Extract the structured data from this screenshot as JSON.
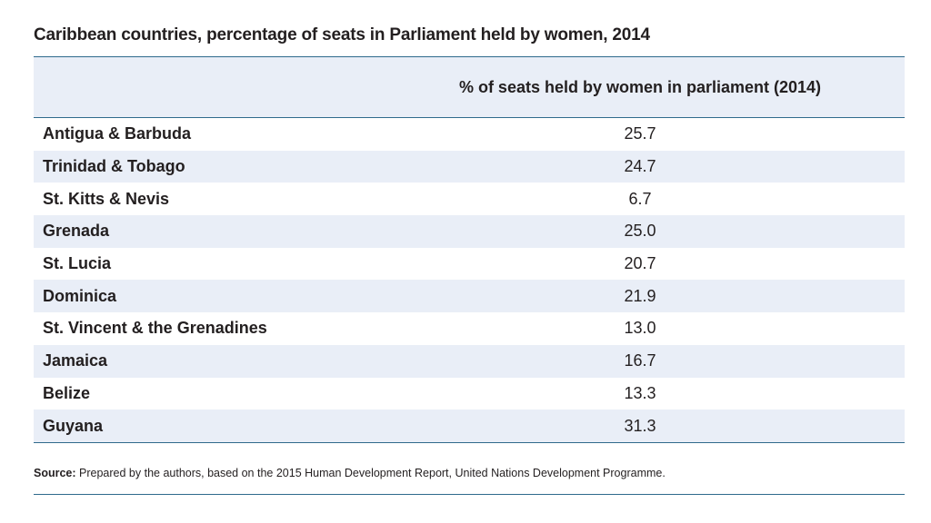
{
  "title": "Caribbean countries, percentage of seats in Parliament held by women, 2014",
  "table": {
    "columns": [
      "",
      "% of seats held by women in parliament (2014)"
    ],
    "rows": [
      {
        "country": "Antigua & Barbuda",
        "value": "25.7"
      },
      {
        "country": "Trinidad & Tobago",
        "value": "24.7"
      },
      {
        "country": "St. Kitts & Nevis",
        "value": "6.7"
      },
      {
        "country": "Grenada",
        "value": "25.0"
      },
      {
        "country": "St. Lucia",
        "value": "20.7"
      },
      {
        "country": "Dominica",
        "value": "21.9"
      },
      {
        "country": "St. Vincent & the Grenadines",
        "value": "13.0"
      },
      {
        "country": "Jamaica",
        "value": "16.7"
      },
      {
        "country": "Belize",
        "value": "13.3"
      },
      {
        "country": "Guyana",
        "value": "31.3"
      }
    ]
  },
  "source": {
    "label": "Source:",
    "text": " Prepared by the authors, based on the 2015 Human Development Report, United Nations Development Programme."
  },
  "colors": {
    "rule": "#2f6a8c",
    "stripe": "#e9eef7",
    "text": "#231f20"
  }
}
